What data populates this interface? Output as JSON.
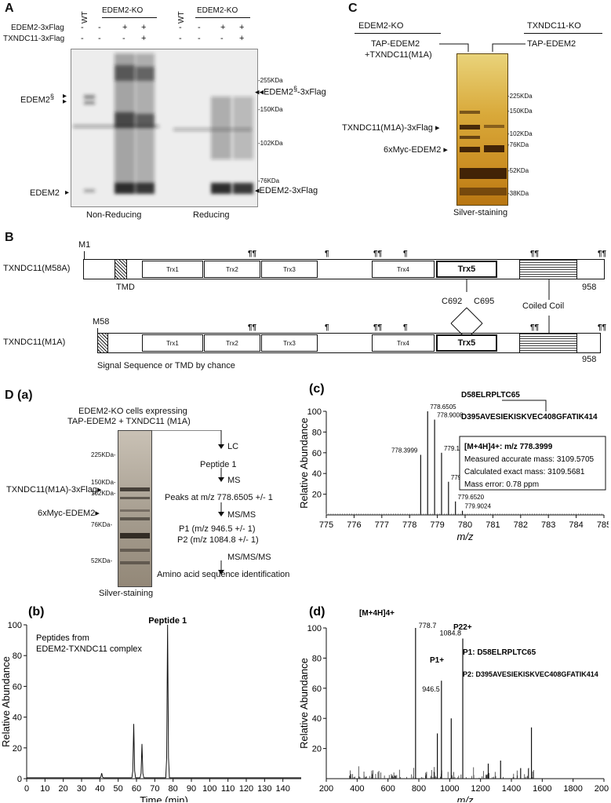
{
  "panelA": {
    "letter": "A",
    "header_ko_left": "EDEM2-KO",
    "header_ko_right": "EDEM2-KO",
    "wt_left": "WT",
    "wt_right": "WT",
    "row1_label": "EDEM2-3xFlag",
    "row2_label": "TXNDC11-3xFlag",
    "row1_signs": [
      "-",
      "-",
      "+",
      "+",
      "-",
      "-",
      "+",
      "+"
    ],
    "row2_signs": [
      "-",
      "-",
      "-",
      "+",
      "-",
      "-",
      "-",
      "+"
    ],
    "left_label_top": "EDEM2",
    "left_label_top_sup": "§",
    "left_label_bottom": "EDEM2",
    "right_label_top": "EDEM2",
    "right_label_top_sup": "§",
    "right_label_top_suffix": "-3xFlag",
    "right_label_bottom": "EDEM2-3xFlag",
    "markers": [
      "255KDa",
      "150KDa",
      "102KDa",
      "76KDa"
    ],
    "caption_left": "Non-Reducing",
    "caption_right": "Reducing"
  },
  "panelC": {
    "letter": "C",
    "ko_left": "EDEM2-KO",
    "ko_right": "TXNDC11-KO",
    "lane_left_line1": "TAP-EDEM2",
    "lane_left_line2": "+TXNDC11(M1A)",
    "lane_right": "TAP-EDEM2",
    "band1": "TXNDC11(M1A)-3xFlag",
    "band2": "6xMyc-EDEM2",
    "markers": [
      "225KDa",
      "150KDa",
      "102KDa",
      "76KDa",
      "52KDa",
      "38KDa"
    ],
    "caption": "Silver-staining"
  },
  "panelB": {
    "letter": "B",
    "row1_name": "TXNDC11(M58A)",
    "row2_name": "TXNDC11(M1A)",
    "m1": "M1",
    "m58": "M58",
    "tmd": "TMD",
    "end1": "958",
    "end2": "958",
    "trx": [
      "Trx1",
      "Trx2",
      "Trx3",
      "Trx4",
      "Trx5"
    ],
    "c692": "C692",
    "c695": "C695",
    "coiled": "Coiled Coil",
    "signal": "Signal Sequence or TMD by chance",
    "pilcrow": "¶",
    "double_pilcrow": "¶¶"
  },
  "panelDa": {
    "letter": "D",
    "sub": "(a)",
    "title1": "EDEM2-KO cells expressing",
    "title2": "TAP-EDEM2 + TXNDC11 (M1A)",
    "markers": [
      "225KDa",
      "150KDa",
      "102KDa",
      "76KDa",
      "52KDa"
    ],
    "band1": "TXNDC11(M1A)-3xFlag",
    "band2": "6xMyc-EDEM2",
    "caption": "Silver-staining",
    "flow": {
      "lc": "LC",
      "peptide": "Peptide 1",
      "ms": "MS",
      "peaks": "Peaks at m/z 778.6505 +/- 1",
      "msms": "MS/MS",
      "p1": "P1 (m/z 946.5 +/- 1)",
      "p2": "P2 (m/z 1084.8 +/- 1)",
      "msmsms": "MS/MS/MS",
      "final": "Amino acid sequence identification"
    }
  },
  "chart_data": [
    {
      "panel": "D(c)",
      "type": "bar",
      "title": "",
      "xlabel": "m/z",
      "ylabel": "Relative Abundance",
      "xlim": [
        775,
        785
      ],
      "ylim": [
        0,
        100
      ],
      "x_ticks": [
        775,
        776,
        777,
        778,
        779,
        780,
        781,
        782,
        783,
        784,
        785
      ],
      "y_ticks": [
        20,
        40,
        60,
        80,
        100
      ],
      "peaks": [
        {
          "x": 778.3999,
          "y": 58,
          "label": "778.3999"
        },
        {
          "x": 778.6505,
          "y": 100,
          "label": "778.6505"
        },
        {
          "x": 778.9008,
          "y": 92,
          "label": "778.9008"
        },
        {
          "x": 779.1512,
          "y": 60,
          "label": "779.1512"
        },
        {
          "x": 779.4015,
          "y": 32,
          "label": "779.4015"
        },
        {
          "x": 779.652,
          "y": 13,
          "label": "779.6520"
        },
        {
          "x": 779.9024,
          "y": 4,
          "label": "779.9024"
        }
      ],
      "peptide_top": "D58ELRPLTC65",
      "peptide_bottom": "D395AVESIEKISKVEC408GFATIK414",
      "box": {
        "line1": "[M+4H]4+: m/z 778.3999",
        "line2": "Measured accurate mass: 3109.5705",
        "line3": "Calculated exact mass: 3109.5681",
        "line4": "Mass error: 0.78 ppm"
      }
    },
    {
      "panel": "D(b)",
      "type": "line",
      "title": "",
      "xlabel": "Time (min)",
      "ylabel": "Relative Abundance",
      "xlim": [
        0,
        150
      ],
      "ylim": [
        0,
        100
      ],
      "x_ticks": [
        0,
        10,
        20,
        30,
        40,
        50,
        60,
        70,
        80,
        90,
        100,
        110,
        120,
        130,
        140
      ],
      "y_ticks": [
        0,
        20,
        40,
        60,
        80,
        100
      ],
      "annotation": "Peptides from EDEM2-TXNDC11 complex",
      "annotation_line1": "Peptides from",
      "annotation_line2": "EDEM2-TXNDC11 complex",
      "peak_label": "Peptide 1",
      "peaks": [
        {
          "x": 41,
          "y": 3
        },
        {
          "x": 58.5,
          "y": 35
        },
        {
          "x": 63,
          "y": 22
        },
        {
          "x": 77,
          "y": 100
        }
      ]
    },
    {
      "panel": "D(d)",
      "type": "bar",
      "title": "",
      "xlabel": "m/z",
      "ylabel": "Relative Abundance",
      "xlim": [
        200,
        2000
      ],
      "ylim": [
        0,
        100
      ],
      "x_ticks": [
        200,
        400,
        600,
        800,
        1000,
        1200,
        1400,
        1600,
        1800,
        2000
      ],
      "y_ticks": [
        20,
        40,
        60,
        80,
        100
      ],
      "peaks": [
        {
          "x": 778.7,
          "y": 100,
          "label": "778.7"
        },
        {
          "x": 920,
          "y": 30
        },
        {
          "x": 946.5,
          "y": 65,
          "label": "946.5"
        },
        {
          "x": 1010,
          "y": 40
        },
        {
          "x": 1084.8,
          "y": 93,
          "label": "1084.8"
        },
        {
          "x": 1250,
          "y": 10
        },
        {
          "x": 1330,
          "y": 12
        },
        {
          "x": 1530,
          "y": 34
        },
        {
          "x": 1460,
          "y": 7
        }
      ],
      "label_mh": "[M+4H]4+",
      "label_p1": "P1+",
      "label_p2": "P22+",
      "legend_p1": "P1: D58ELRPLTC65",
      "legend_p2": "P2: D395AVESIEKISKVEC408GFATIK414"
    }
  ]
}
